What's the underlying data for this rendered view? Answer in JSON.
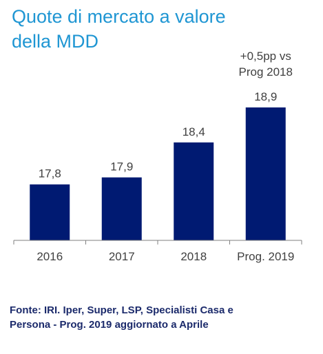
{
  "title": {
    "line1": "Quote di mercato a valore",
    "line2": "della MDD"
  },
  "source_note": {
    "line1": "Fonte: IRI. Iper, Super, LSP, Specialisti Casa e",
    "line2": "Persona - Prog. 2019 aggiornato a Aprile"
  },
  "colors": {
    "title": "#1f96d3",
    "bar": "#001a72",
    "text": "#404040",
    "source": "#1b2a6b",
    "axis": "#7f7f7f"
  },
  "chart_data": {
    "type": "bar",
    "categories": [
      "2016",
      "2017",
      "2018",
      "Prog. 2019"
    ],
    "values": [
      17.8,
      17.9,
      18.4,
      18.9
    ],
    "value_labels": [
      "17,8",
      "17,9",
      "18,4",
      "18,9"
    ],
    "annotation": {
      "category": "Prog. 2019",
      "line1": "+0,5pp vs",
      "line2": "Prog 2018"
    },
    "ylim": [
      17.0,
      18.9
    ],
    "grid": false,
    "legend": "none",
    "xlabel": "",
    "ylabel": ""
  }
}
